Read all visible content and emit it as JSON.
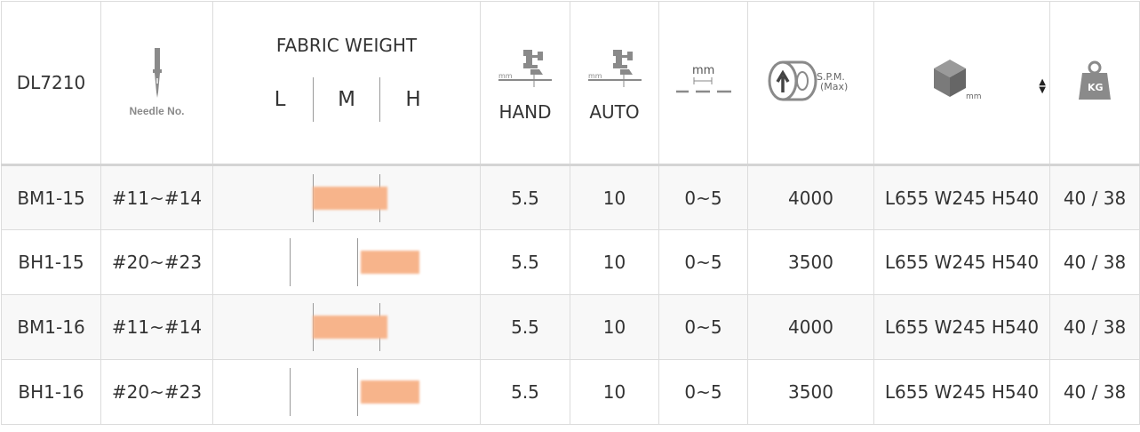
{
  "header": {
    "model": "DL7210",
    "needle_label": "Needle No.",
    "fabric_weight_title": "FABRIC WEIGHT",
    "fabric_levels": [
      "L",
      "M",
      "H"
    ],
    "hand_label": "HAND",
    "auto_label": "AUTO",
    "stitch_unit": "mm",
    "hand_unit": "mm",
    "auto_unit": "mm",
    "spm_label_1": "S.P.M.",
    "spm_label_2": "(Max)",
    "dim_unit": "mm",
    "kg_label": "KG"
  },
  "rows": [
    {
      "model": "BM1-15",
      "needle": "#11~#14",
      "weight_range": "L-M",
      "hand": "5.5",
      "auto": "10",
      "stitch": "0~5",
      "spm": "4000",
      "dims": "L655 W245 H540",
      "weight": "40 / 38"
    },
    {
      "model": "BH1-15",
      "needle": "#20~#23",
      "weight_range": "M-H",
      "hand": "5.5",
      "auto": "10",
      "stitch": "0~5",
      "spm": "3500",
      "dims": "L655 W245 H540",
      "weight": "40 / 38"
    },
    {
      "model": "BM1-16",
      "needle": "#11~#14",
      "weight_range": "L-M",
      "hand": "5.5",
      "auto": "10",
      "stitch": "0~5",
      "spm": "4000",
      "dims": "L655 W245 H540",
      "weight": "40 / 38"
    },
    {
      "model": "BH1-16",
      "needle": "#20~#23",
      "weight_range": "M-H",
      "hand": "5.5",
      "auto": "10",
      "stitch": "0~5",
      "spm": "3500",
      "dims": "L655 W245 H540",
      "weight": "40 / 38"
    }
  ],
  "colors": {
    "weight_bar": "#f7b48b",
    "border": "#dcdcdc",
    "stripe": "#f8f8f8",
    "text": "#333333"
  }
}
